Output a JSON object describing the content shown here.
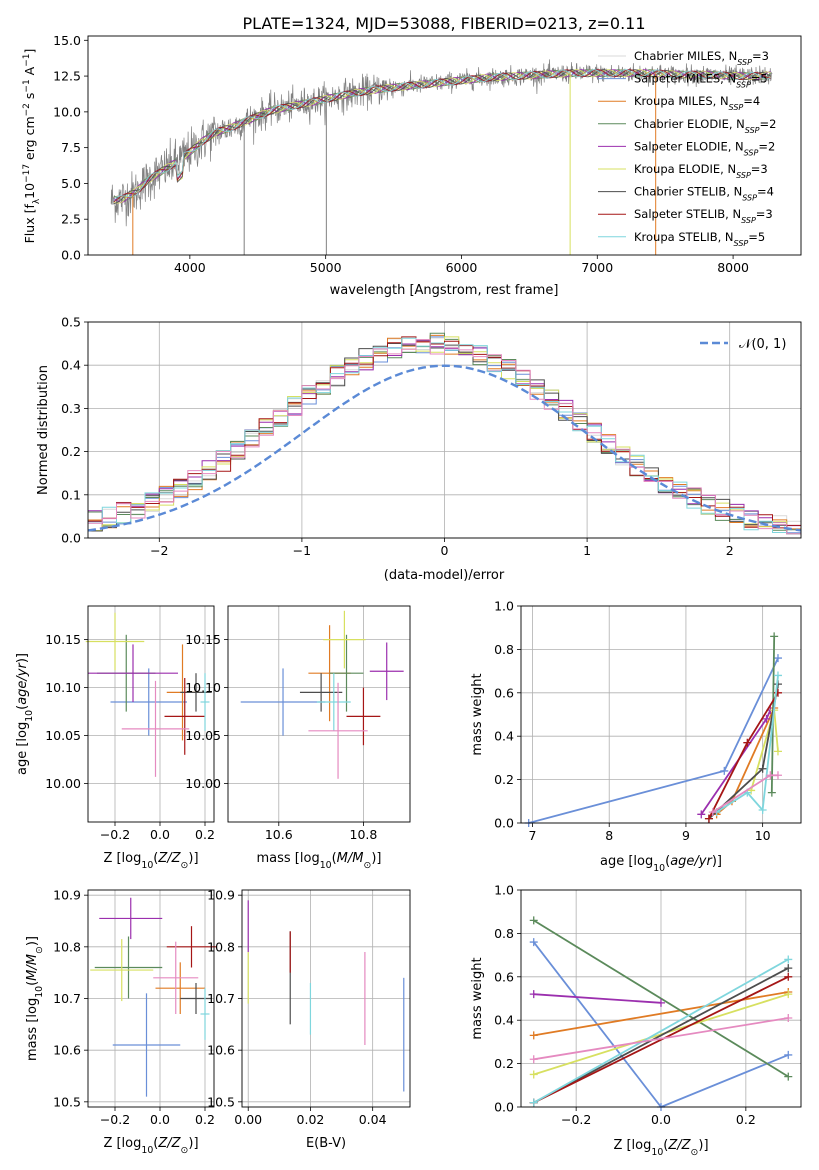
{
  "colors": {
    "chabrier_miles": "#d9d9d9",
    "salpeter_miles": "#6a8fd8",
    "kroupa_miles": "#e07b24",
    "chabrier_elodie": "#5b8a5b",
    "salpeter_elodie": "#9b2fae",
    "kroupa_elodie": "#d7e060",
    "chabrier_stelib": "#4d4d4d",
    "salpeter_stelib": "#a51616",
    "kroupa_stelib": "#7fd6dd",
    "pink": "#e58ac0",
    "data": "#808080",
    "normal": "#5b8ad6"
  },
  "chart_data": [
    {
      "id": "spectrum",
      "type": "line",
      "title": "PLATE=1324, MJD=53088, FIBERID=0213, z=0.11",
      "xlabel": "wavelength [Angstrom, rest frame]",
      "ylabel": "Flux [f_λ 10^-17 erg cm^-2 s^-1 A^-1]",
      "xlim": [
        3250,
        8500
      ],
      "ylim": [
        0,
        15.3
      ],
      "xticks": [
        4000,
        5000,
        6000,
        7000,
        8000
      ],
      "yticks": [
        0,
        2.5,
        5,
        7.5,
        10,
        12.5,
        15
      ],
      "ytick_labels": [
        "0.0",
        "2.5",
        "5.0",
        "7.5",
        "10.0",
        "12.5",
        "15.0"
      ],
      "grid": false,
      "legend_position": "right",
      "continuum": {
        "x": [
          3400,
          3500,
          3600,
          3700,
          3800,
          3900,
          4000,
          4100,
          4200,
          4300,
          4400,
          4500,
          4600,
          4800,
          5000,
          5200,
          5400,
          5600,
          5800,
          6000,
          6200,
          6400,
          6600,
          6800,
          7000,
          7200,
          7400,
          7600,
          7800,
          8000,
          8200,
          8300
        ],
        "y": [
          3.8,
          3.9,
          4.4,
          5.3,
          5.9,
          6.5,
          7.2,
          8.0,
          8.6,
          8.9,
          9.3,
          9.7,
          10.1,
          10.5,
          10.9,
          11.3,
          11.6,
          11.8,
          12.0,
          12.2,
          12.4,
          12.5,
          12.6,
          12.7,
          12.7,
          12.7,
          12.7,
          12.6,
          12.6,
          12.5,
          12.5,
          12.6
        ]
      },
      "series": [
        {
          "name": "Chabrier MILES, N_SSP=3",
          "color": "#d9d9d9"
        },
        {
          "name": "Salpeter MILES, N_SSP=5",
          "color": "#6a8fd8"
        },
        {
          "name": "Kroupa MILES, N_SSP=4",
          "color": "#e07b24"
        },
        {
          "name": "Chabrier ELODIE, N_SSP=2",
          "color": "#5b8a5b"
        },
        {
          "name": "Salpeter ELODIE, N_SSP=2",
          "color": "#9b2fae"
        },
        {
          "name": "Kroupa ELODIE, N_SSP=3",
          "color": "#d7e060"
        },
        {
          "name": "Chabrier STELIB, N_SSP=4",
          "color": "#4d4d4d"
        },
        {
          "name": "Salpeter STELIB, N_SSP=3",
          "color": "#a51616"
        },
        {
          "name": "Kroupa STELIB, N_SSP=5",
          "color": "#7fd6dd"
        }
      ]
    },
    {
      "id": "residuals",
      "type": "histogram",
      "xlabel": "(data-model)/error",
      "ylabel": "Normed distribution",
      "xlim": [
        -2.5,
        2.5
      ],
      "ylim": [
        0,
        0.5
      ],
      "xticks": [
        -2,
        -1,
        0,
        1,
        2
      ],
      "xtick_labels": [
        "−2",
        "−1",
        "0",
        "1",
        "2"
      ],
      "yticks": [
        0,
        0.1,
        0.2,
        0.3,
        0.4,
        0.5
      ],
      "ytick_labels": [
        "0.0",
        "0.1",
        "0.2",
        "0.3",
        "0.4",
        "0.5"
      ],
      "grid": true,
      "legend_position": "top-right",
      "reference": {
        "name": "𝒩(0, 1)",
        "mean": 0,
        "sigma": 1
      },
      "bin_width": 0.1,
      "range": [
        -2.5,
        2.5
      ]
    },
    {
      "id": "age_vs_Z",
      "type": "scatter",
      "xlabel": "Z [log10(Z/Z⊙)]",
      "ylabel": "age  [log10(age/yr)]",
      "xlim": [
        -0.32,
        0.24
      ],
      "ylim": [
        9.96,
        10.185
      ],
      "xticks": [
        -0.2,
        0,
        0.2
      ],
      "xtick_labels": [
        "−0.2",
        "0.0",
        "0.2"
      ],
      "yticks": [
        10.0,
        10.05,
        10.1,
        10.15
      ],
      "ytick_labels": [
        "10.00",
        "10.05",
        "10.10",
        "10.15"
      ],
      "grid": true,
      "points": [
        {
          "x": -0.05,
          "y": 10.085,
          "xerr": 0.17,
          "yerr": 0.035,
          "color": "#6a8fd8"
        },
        {
          "x": 0.1,
          "y": 10.095,
          "xerr": 0.07,
          "yerr": 0.05,
          "color": "#e07b24"
        },
        {
          "x": -0.15,
          "y": 10.115,
          "xerr": 0.13,
          "yerr": 0.04,
          "color": "#5b8a5b"
        },
        {
          "x": -0.12,
          "y": 10.115,
          "xerr": 0.2,
          "yerr": 0.03,
          "color": "#9b2fae"
        },
        {
          "x": -0.2,
          "y": 10.148,
          "xerr": 0.13,
          "yerr": 0.03,
          "color": "#d7e060"
        },
        {
          "x": 0.16,
          "y": 10.095,
          "xerr": 0.07,
          "yerr": 0.02,
          "color": "#4d4d4d"
        },
        {
          "x": 0.11,
          "y": 10.07,
          "xerr": 0.09,
          "yerr": 0.04,
          "color": "#a51616"
        },
        {
          "x": 0.2,
          "y": 10.085,
          "xerr": 0.02,
          "yerr": 0.03,
          "color": "#7fd6dd"
        },
        {
          "x": -0.02,
          "y": 10.057,
          "xerr": 0.15,
          "yerr": 0.05,
          "color": "#e58ac0"
        }
      ]
    },
    {
      "id": "age_vs_mass",
      "type": "scatter",
      "xlabel": "mass [log10(M/M⊙)]",
      "ylabel": "",
      "xlim": [
        10.48,
        10.91
      ],
      "ylim": [
        9.96,
        10.185
      ],
      "xticks": [
        10.6,
        10.8
      ],
      "xtick_labels": [
        "10.6",
        "10.8"
      ],
      "yticks": [
        10.0,
        10.05,
        10.1,
        10.15
      ],
      "ytick_labels": [
        "10.00",
        "10.05",
        "10.10",
        "10.15"
      ],
      "grid": true,
      "points": [
        {
          "x": 10.61,
          "y": 10.085,
          "xerr": 0.1,
          "yerr": 0.035,
          "color": "#6a8fd8"
        },
        {
          "x": 10.72,
          "y": 10.115,
          "xerr": 0.05,
          "yerr": 0.05,
          "color": "#e07b24"
        },
        {
          "x": 10.76,
          "y": 10.115,
          "xerr": 0.04,
          "yerr": 0.04,
          "color": "#5b8a5b"
        },
        {
          "x": 10.855,
          "y": 10.117,
          "xerr": 0.04,
          "yerr": 0.03,
          "color": "#9b2fae"
        },
        {
          "x": 10.755,
          "y": 10.15,
          "xerr": 0.05,
          "yerr": 0.03,
          "color": "#d7e060"
        },
        {
          "x": 10.7,
          "y": 10.095,
          "xerr": 0.05,
          "yerr": 0.02,
          "color": "#4d4d4d"
        },
        {
          "x": 10.8,
          "y": 10.07,
          "xerr": 0.04,
          "yerr": 0.03,
          "color": "#a51616"
        },
        {
          "x": 10.73,
          "y": 10.085,
          "xerr": 0.04,
          "yerr": 0.03,
          "color": "#7fd6dd"
        },
        {
          "x": 10.74,
          "y": 10.055,
          "xerr": 0.07,
          "yerr": 0.05,
          "color": "#e58ac0"
        }
      ]
    },
    {
      "id": "weight_vs_age",
      "type": "line",
      "xlabel": "age  [log10(age/yr)]",
      "ylabel": "mass weight",
      "xlim": [
        6.85,
        10.5
      ],
      "ylim": [
        0,
        1
      ],
      "xticks": [
        7,
        8,
        9,
        10
      ],
      "xtick_labels": [
        "7",
        "8",
        "9",
        "10"
      ],
      "yticks": [
        0,
        0.2,
        0.4,
        0.6,
        0.8,
        1.0
      ],
      "ytick_labels": [
        "0.0",
        "0.2",
        "0.4",
        "0.6",
        "0.8",
        "1.0"
      ],
      "grid": true,
      "series": [
        {
          "color": "#6a8fd8",
          "x": [
            6.95,
            9.5,
            10.2
          ],
          "y": [
            0.0,
            0.24,
            0.76
          ]
        },
        {
          "color": "#e07b24",
          "x": [
            9.4,
            9.6,
            10.15
          ],
          "y": [
            0.04,
            0.1,
            0.53
          ]
        },
        {
          "color": "#5b8a5b",
          "x": [
            10.12,
            10.15
          ],
          "y": [
            0.14,
            0.86
          ]
        },
        {
          "color": "#9b2fae",
          "x": [
            9.2,
            10.05,
            10.1
          ],
          "y": [
            0.04,
            0.48,
            0.52
          ]
        },
        {
          "color": "#d7e060",
          "x": [
            9.85,
            10.15,
            10.2
          ],
          "y": [
            0.15,
            0.52,
            0.33
          ]
        },
        {
          "color": "#4d4d4d",
          "x": [
            9.3,
            10.0,
            10.2
          ],
          "y": [
            0.02,
            0.25,
            0.64
          ]
        },
        {
          "color": "#a51616",
          "x": [
            9.3,
            9.8,
            10.2
          ],
          "y": [
            0.02,
            0.37,
            0.6
          ]
        },
        {
          "color": "#7fd6dd",
          "x": [
            9.4,
            9.8,
            10.0,
            10.2
          ],
          "y": [
            0.05,
            0.14,
            0.06,
            0.68
          ]
        },
        {
          "color": "#e58ac0",
          "x": [
            9.35,
            10.1,
            10.2
          ],
          "y": [
            0.05,
            0.22,
            0.22
          ]
        }
      ]
    },
    {
      "id": "mass_vs_Z",
      "type": "scatter",
      "xlabel": "Z [log10(Z/Z⊙)]",
      "ylabel": "mass [log10(M/M⊙)]",
      "xlim": [
        -0.32,
        0.24
      ],
      "ylim": [
        10.49,
        10.91
      ],
      "xticks": [
        -0.2,
        0,
        0.2
      ],
      "xtick_labels": [
        "−0.2",
        "0.0",
        "0.2"
      ],
      "yticks": [
        10.5,
        10.6,
        10.7,
        10.8,
        10.9
      ],
      "ytick_labels": [
        "10.5",
        "10.6",
        "10.7",
        "10.8",
        "10.9"
      ],
      "grid": true,
      "points": [
        {
          "x": -0.06,
          "y": 10.61,
          "xerr": 0.15,
          "yerr": 0.1,
          "color": "#6a8fd8"
        },
        {
          "x": 0.09,
          "y": 10.72,
          "xerr": 0.11,
          "yerr": 0.05,
          "color": "#e07b24"
        },
        {
          "x": -0.14,
          "y": 10.76,
          "xerr": 0.15,
          "yerr": 0.06,
          "color": "#5b8a5b"
        },
        {
          "x": -0.13,
          "y": 10.855,
          "xerr": 0.14,
          "yerr": 0.04,
          "color": "#9b2fae"
        },
        {
          "x": -0.17,
          "y": 10.755,
          "xerr": 0.14,
          "yerr": 0.06,
          "color": "#d7e060"
        },
        {
          "x": 0.16,
          "y": 10.7,
          "xerr": 0.07,
          "yerr": 0.03,
          "color": "#4d4d4d"
        },
        {
          "x": 0.14,
          "y": 10.8,
          "xerr": 0.11,
          "yerr": 0.04,
          "color": "#a51616"
        },
        {
          "x": 0.2,
          "y": 10.67,
          "xerr": 0.02,
          "yerr": 0.05,
          "color": "#7fd6dd"
        },
        {
          "x": 0.07,
          "y": 10.74,
          "xerr": 0.1,
          "yerr": 0.07,
          "color": "#e58ac0"
        }
      ]
    },
    {
      "id": "mass_vs_ebv",
      "type": "scatter",
      "xlabel": "E(B-V)",
      "ylabel": "",
      "xlim": [
        -0.002,
        0.052
      ],
      "ylim": [
        10.49,
        10.91
      ],
      "xticks": [
        0,
        0.02,
        0.04
      ],
      "xtick_labels": [
        "0.00",
        "0.02",
        "0.04"
      ],
      "yticks": [
        10.5,
        10.6,
        10.7,
        10.8,
        10.9
      ],
      "ytick_labels": [
        "10.5",
        "10.6",
        "10.7",
        "10.8",
        "10.9"
      ],
      "grid": true,
      "points": [
        {
          "x": 0.05,
          "y": 10.63,
          "yerr": 0.11,
          "color": "#6a8fd8"
        },
        {
          "x": 0.0,
          "y": 10.84,
          "yerr": 0.05,
          "color": "#9b2fae"
        },
        {
          "x": 0.0,
          "y": 10.74,
          "yerr": 0.05,
          "color": "#d7e060"
        },
        {
          "x": 0.0135,
          "y": 10.74,
          "yerr": 0.09,
          "color": "#4d4d4d"
        },
        {
          "x": 0.0135,
          "y": 10.79,
          "yerr": 0.04,
          "color": "#a51616"
        },
        {
          "x": 0.02,
          "y": 10.68,
          "yerr": 0.05,
          "color": "#7fd6dd"
        },
        {
          "x": 0.0375,
          "y": 10.7,
          "yerr": 0.09,
          "color": "#e58ac0"
        }
      ]
    },
    {
      "id": "weight_vs_Z",
      "type": "line",
      "xlabel": "Z [log10(Z/Z⊙)]",
      "ylabel": "mass weight",
      "xlim": [
        -0.33,
        0.33
      ],
      "ylim": [
        0,
        1
      ],
      "xticks": [
        -0.2,
        0,
        0.2
      ],
      "xtick_labels": [
        "−0.2",
        "0.0",
        "0.2"
      ],
      "yticks": [
        0,
        0.2,
        0.4,
        0.6,
        0.8,
        1.0
      ],
      "ytick_labels": [
        "0.0",
        "0.2",
        "0.4",
        "0.6",
        "0.8",
        "1.0"
      ],
      "grid": true,
      "series": [
        {
          "color": "#6a8fd8",
          "x": [
            -0.3,
            0,
            0.3
          ],
          "y": [
            0.76,
            0.0,
            0.24
          ]
        },
        {
          "color": "#e07b24",
          "x": [
            -0.3,
            0.3
          ],
          "y": [
            0.33,
            0.53
          ]
        },
        {
          "color": "#5b8a5b",
          "x": [
            -0.3,
            0.3
          ],
          "y": [
            0.86,
            0.14
          ]
        },
        {
          "color": "#9b2fae",
          "x": [
            -0.3,
            0.0
          ],
          "y": [
            0.52,
            0.48
          ]
        },
        {
          "color": "#d7e060",
          "x": [
            -0.3,
            0.3
          ],
          "y": [
            0.15,
            0.52
          ]
        },
        {
          "color": "#4d4d4d",
          "x": [
            -0.3,
            0.3
          ],
          "y": [
            0.02,
            0.64
          ]
        },
        {
          "color": "#a51616",
          "x": [
            -0.3,
            0.3
          ],
          "y": [
            0.02,
            0.6
          ]
        },
        {
          "color": "#7fd6dd",
          "x": [
            -0.3,
            0.3
          ],
          "y": [
            0.02,
            0.68
          ]
        },
        {
          "color": "#e58ac0",
          "x": [
            -0.3,
            0.3
          ],
          "y": [
            0.22,
            0.41
          ]
        }
      ]
    }
  ]
}
